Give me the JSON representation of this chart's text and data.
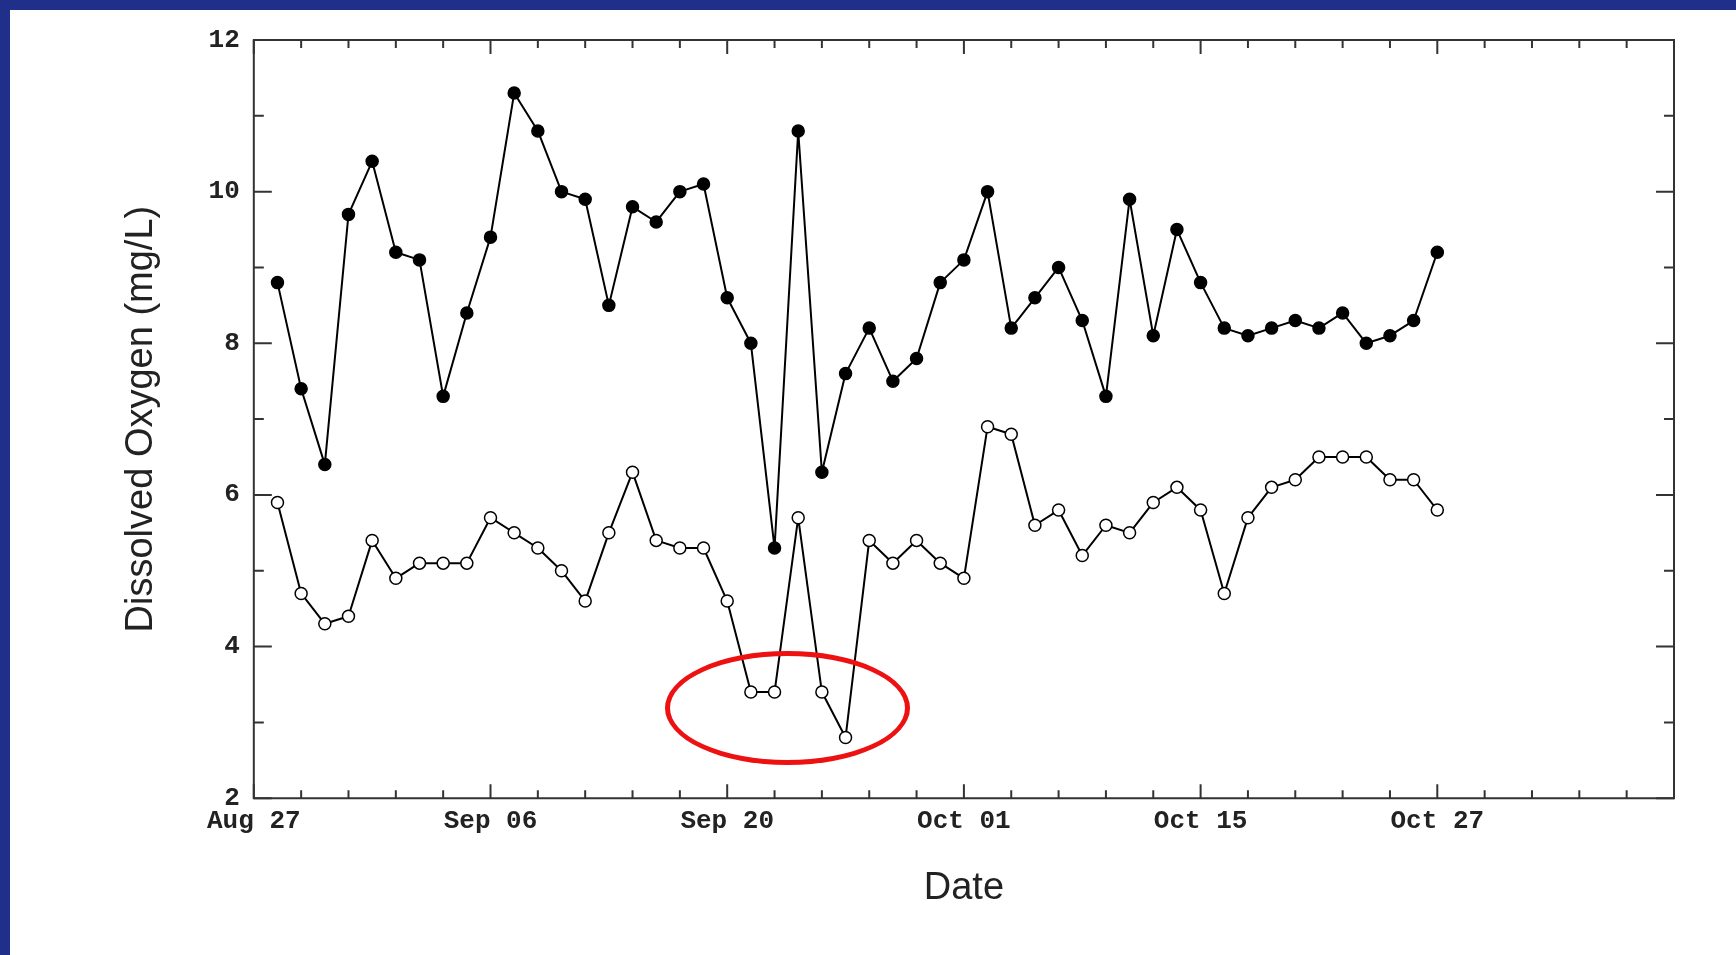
{
  "chart_data": {
    "type": "line",
    "xlabel": "Date",
    "ylabel": "Dissolved Oxygen (mg/L)",
    "marker": "circle",
    "line_style": "solid",
    "legend": false,
    "grid": false,
    "categories": [
      "Aug 27",
      null,
      null,
      null,
      null,
      null,
      null,
      null,
      null,
      null,
      "Sep 06",
      null,
      null,
      null,
      null,
      null,
      null,
      null,
      null,
      null,
      "Sep 20",
      null,
      null,
      null,
      null,
      null,
      null,
      null,
      null,
      null,
      "Oct 01",
      null,
      null,
      null,
      null,
      null,
      null,
      null,
      null,
      null,
      "Oct 15",
      null,
      null,
      null,
      null,
      null,
      null,
      null,
      null,
      null,
      "Oct 27",
      null,
      null,
      null,
      null,
      null,
      null,
      null,
      null,
      null,
      null
    ],
    "ylim": [
      2,
      12
    ],
    "yticks": [
      2,
      {
        "value": 3,
        "label": null
      },
      4,
      {
        "value": 5,
        "label": null
      },
      6,
      {
        "value": 7,
        "label": null
      },
      8,
      {
        "value": 9,
        "label": null
      },
      10,
      {
        "value": 11,
        "label": null
      },
      12
    ],
    "series": [
      {
        "color": "#000000",
        "values": [
          null,
          8.8,
          7.4,
          6.4,
          9.7,
          10.4,
          9.2,
          9.1,
          7.3,
          8.4,
          9.4,
          11.3,
          10.8,
          10.0,
          9.9,
          8.5,
          9.8,
          9.6,
          10.0,
          10.1,
          8.6,
          8.0,
          5.3,
          10.8,
          6.3,
          7.6,
          8.2,
          7.5,
          7.8,
          8.8,
          9.1,
          10.0,
          8.2,
          8.6,
          9.0,
          8.3,
          7.3,
          9.9,
          8.1,
          9.5,
          8.8,
          8.2,
          8.1,
          8.2,
          8.3,
          8.2,
          8.4,
          8.0,
          8.1,
          8.3,
          9.2,
          null,
          null,
          null,
          null,
          null,
          null,
          null,
          null,
          null,
          null
        ]
      },
      {
        "color": "#000000",
        "values": [
          null,
          5.9,
          4.7,
          4.3,
          4.4,
          5.4,
          4.9,
          5.1,
          5.1,
          5.1,
          5.7,
          5.5,
          5.3,
          5.0,
          4.6,
          5.5,
          6.3,
          5.4,
          5.3,
          5.3,
          4.6,
          3.4,
          3.4,
          5.7,
          3.4,
          2.8,
          5.4,
          5.1,
          5.4,
          5.1,
          4.9,
          6.9,
          6.8,
          5.6,
          5.8,
          5.2,
          5.6,
          5.5,
          5.9,
          6.1,
          5.8,
          4.7,
          5.7,
          6.1,
          6.2,
          6.5,
          6.5,
          6.5,
          6.2,
          6.2,
          5.8,
          null,
          null,
          null,
          null,
          null,
          null,
          null,
          null,
          null,
          null
        ]
      }
    ]
  }
}
